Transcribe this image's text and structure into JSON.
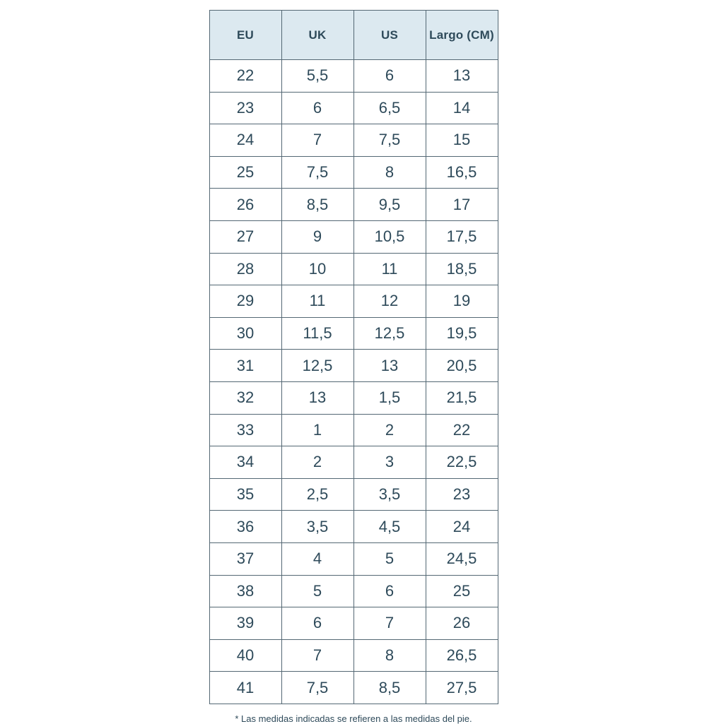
{
  "chart_data": {
    "type": "table",
    "columns": [
      "EU",
      "UK",
      "US",
      "Largo (CM)"
    ],
    "rows": [
      [
        "22",
        "5,5",
        "6",
        "13"
      ],
      [
        "23",
        "6",
        "6,5",
        "14"
      ],
      [
        "24",
        "7",
        "7,5",
        "15"
      ],
      [
        "25",
        "7,5",
        "8",
        "16,5"
      ],
      [
        "26",
        "8,5",
        "9,5",
        "17"
      ],
      [
        "27",
        "9",
        "10,5",
        "17,5"
      ],
      [
        "28",
        "10",
        "11",
        "18,5"
      ],
      [
        "29",
        "11",
        "12",
        "19"
      ],
      [
        "30",
        "11,5",
        "12,5",
        "19,5"
      ],
      [
        "31",
        "12,5",
        "13",
        "20,5"
      ],
      [
        "32",
        "13",
        "1,5",
        "21,5"
      ],
      [
        "33",
        "1",
        "2",
        "22"
      ],
      [
        "34",
        "2",
        "3",
        "22,5"
      ],
      [
        "35",
        "2,5",
        "3,5",
        "23"
      ],
      [
        "36",
        "3,5",
        "4,5",
        "24"
      ],
      [
        "37",
        "4",
        "5",
        "24,5"
      ],
      [
        "38",
        "5",
        "6",
        "25"
      ],
      [
        "39",
        "6",
        "7",
        "26"
      ],
      [
        "40",
        "7",
        "8",
        "26,5"
      ],
      [
        "41",
        "7,5",
        "8,5",
        "27,5"
      ]
    ],
    "footnote": "* Las medidas indicadas se refieren a las medidas del pie."
  },
  "colors": {
    "header_bg": "#dce9f0",
    "text": "#2e4a5a",
    "border": "#546874"
  }
}
